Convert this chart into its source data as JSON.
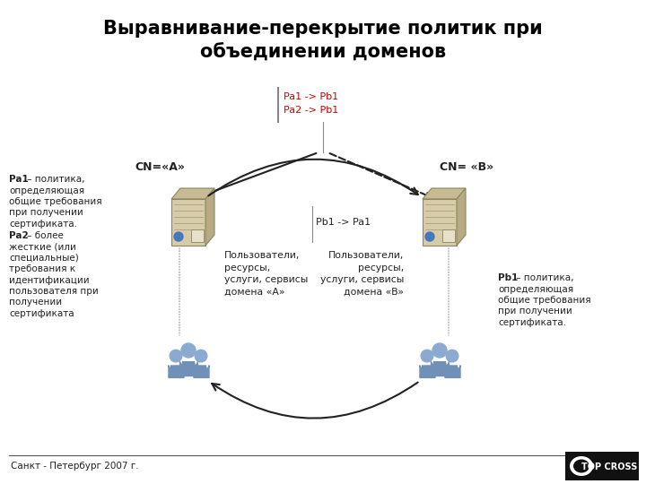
{
  "title_line1": "Выравнивание-перекрытие политик при",
  "title_line2": "объединении доменов",
  "cn_a_label": "CN=«A»",
  "cn_b_label": "CN= «B»",
  "policy_box_text": "Pa1 -> Pb1\nPa2 -> Pb1",
  "pb1_pa1_label": "Pb1 -> Pa1",
  "domain_a_text": "Пользователи,\nресурсы,\nуслуги, сервисы\nдомена «A»",
  "domain_b_text": "Пользователи,\nресурсы,\nуслуги, сервисы\nдомена «B»",
  "left_bold1": "Pa1",
  "left_bold2": "Pa2",
  "left_desc_parts": [
    [
      "bold",
      "Pa1"
    ],
    [
      "normal",
      " – политика,"
    ],
    [
      "normal",
      "определяющая"
    ],
    [
      "normal",
      "общие требования"
    ],
    [
      "normal",
      "при получении"
    ],
    [
      "normal",
      "сертификата."
    ],
    [
      "bold",
      "Pa2"
    ],
    [
      "normal",
      " – более"
    ],
    [
      "normal",
      "жесткие (или"
    ],
    [
      "normal",
      "специальные)"
    ],
    [
      "normal",
      "требования к"
    ],
    [
      "normal",
      "идентификации"
    ],
    [
      "normal",
      "пользователя при"
    ],
    [
      "normal",
      "получении"
    ],
    [
      "normal",
      "сертификата"
    ]
  ],
  "right_desc_parts": [
    [
      "bold",
      "Pb1"
    ],
    [
      "normal",
      " – политика,"
    ],
    [
      "normal",
      "определяющая"
    ],
    [
      "normal",
      "общие требования"
    ],
    [
      "normal",
      "при получении"
    ],
    [
      "normal",
      "сертификата."
    ]
  ],
  "footer_text": "Санкт - Петербург 2007 г.",
  "bg_color": "#ffffff",
  "title_color": "#000000",
  "policy_box_color": "#cc0000",
  "arrow_color": "#222222",
  "text_color": "#222222",
  "server_body_color": "#d8cba8",
  "server_screen_color": "#e8dfc0",
  "user_body_color": "#7090b8",
  "user_head_color": "#8aaad0"
}
